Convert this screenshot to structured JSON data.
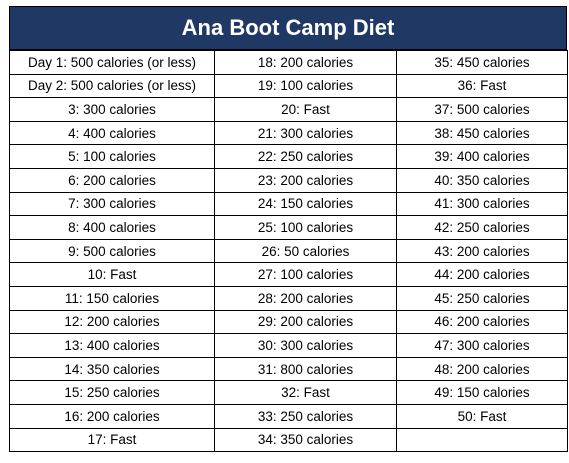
{
  "header": {
    "title": "Ana Boot Camp Diet"
  },
  "table": {
    "rows": [
      [
        "Day 1: 500 calories (or less)",
        "18: 200 calories",
        "35: 450 calories"
      ],
      [
        "Day 2: 500 calories (or less)",
        "19: 100 calories",
        "36: Fast"
      ],
      [
        "3: 300 calories",
        "20: Fast",
        "37: 500 calories"
      ],
      [
        "4: 400 calories",
        "21: 300 calories",
        "38: 450 calories"
      ],
      [
        "5: 100 calories",
        "22: 250 calories",
        "39: 400 calories"
      ],
      [
        "6: 200 calories",
        "23: 200 calories",
        "40: 350 calories"
      ],
      [
        "7: 300 calories",
        "24: 150 calories",
        "41: 300 calories"
      ],
      [
        "8: 400 calories",
        "25: 100 calories",
        "42: 250 calories"
      ],
      [
        "9: 500 calories",
        "26: 50 calories",
        "43: 200 calories"
      ],
      [
        "10: Fast",
        "27: 100 calories",
        "44: 200 calories"
      ],
      [
        "11: 150 calories",
        "28: 200 calories",
        "45: 250 calories"
      ],
      [
        "12: 200 calories",
        "29: 200 calories",
        "46: 200 calories"
      ],
      [
        "13: 400 calories",
        "30: 300 calories",
        "47: 300 calories"
      ],
      [
        "14: 350 calories",
        "31: 800 calories",
        "48: 200 calories"
      ],
      [
        "15: 250 calories",
        "32: Fast",
        "49: 150 calories"
      ],
      [
        "16: 200 calories",
        "33: 250 calories",
        "50: Fast"
      ],
      [
        "17: Fast",
        "34: 350 calories"
      ]
    ]
  }
}
